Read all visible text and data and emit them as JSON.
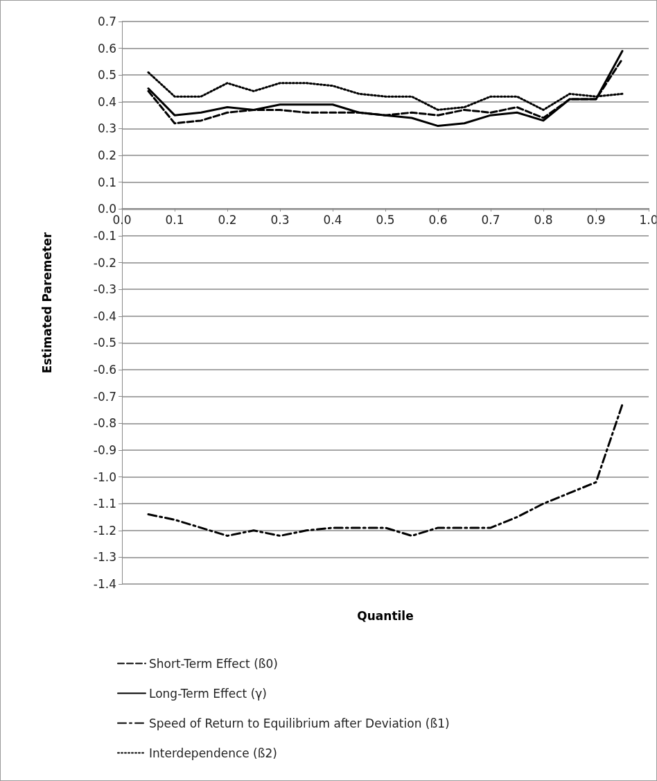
{
  "chart_data": {
    "type": "line",
    "xlabel": "Quantile",
    "ylabel": "Estimated Paremeter",
    "x": [
      0.05,
      0.1,
      0.15,
      0.2,
      0.25,
      0.3,
      0.35,
      0.4,
      0.45,
      0.5,
      0.55,
      0.6,
      0.65,
      0.7,
      0.75,
      0.8,
      0.85,
      0.9,
      0.95
    ],
    "series": [
      {
        "name": "Short-Term Effect (ß0)",
        "color": "#000000",
        "line_style": "dashed",
        "values": [
          0.44,
          0.32,
          0.33,
          0.36,
          0.37,
          0.37,
          0.36,
          0.36,
          0.36,
          0.35,
          0.36,
          0.35,
          0.37,
          0.36,
          0.38,
          0.34,
          0.41,
          0.41,
          0.56
        ]
      },
      {
        "name": "Long-Term Effect (γ)",
        "color": "#000000",
        "line_style": "solid",
        "values": [
          0.45,
          0.35,
          0.36,
          0.38,
          0.37,
          0.39,
          0.39,
          0.39,
          0.36,
          0.35,
          0.34,
          0.31,
          0.32,
          0.35,
          0.36,
          0.33,
          0.41,
          0.41,
          0.59
        ]
      },
      {
        "name": "Speed of Return to Equilibrium after Deviation (ß1)",
        "color": "#000000",
        "line_style": "dashdot",
        "values": [
          -1.14,
          -1.16,
          -1.19,
          -1.22,
          -1.2,
          -1.22,
          -1.2,
          -1.19,
          -1.19,
          -1.19,
          -1.22,
          -1.19,
          -1.19,
          -1.19,
          -1.15,
          -1.1,
          -1.06,
          -1.02,
          -0.73
        ]
      },
      {
        "name": "Interdependence (ß2)",
        "color": "#000000",
        "line_style": "dotted",
        "values": [
          0.51,
          0.42,
          0.42,
          0.47,
          0.44,
          0.47,
          0.47,
          0.46,
          0.43,
          0.42,
          0.42,
          0.37,
          0.38,
          0.42,
          0.42,
          0.37,
          0.43,
          0.42,
          0.43
        ]
      }
    ],
    "xlim": [
      0,
      1
    ],
    "xticks": [
      {
        "value": 0,
        "label": "0.0"
      },
      0.1,
      0.2,
      0.3,
      0.4,
      0.5,
      0.6,
      0.7,
      0.8,
      0.9,
      {
        "value": 1,
        "label": "1.0"
      }
    ],
    "ylim": [
      -1.4,
      0.7
    ],
    "yticks": [
      -1.4,
      -1.3,
      -1.2,
      -1.1,
      {
        "value": -1,
        "label": "-1.0"
      },
      -0.9,
      -0.8,
      -0.7,
      -0.6,
      -0.5,
      -0.4,
      -0.3,
      -0.2,
      -0.1,
      {
        "value": 0,
        "label": "0.0"
      },
      0.1,
      0.2,
      0.3,
      0.4,
      0.5,
      0.6,
      0.7
    ],
    "grid": "y",
    "legend": "bottom",
    "marker": "none"
  }
}
